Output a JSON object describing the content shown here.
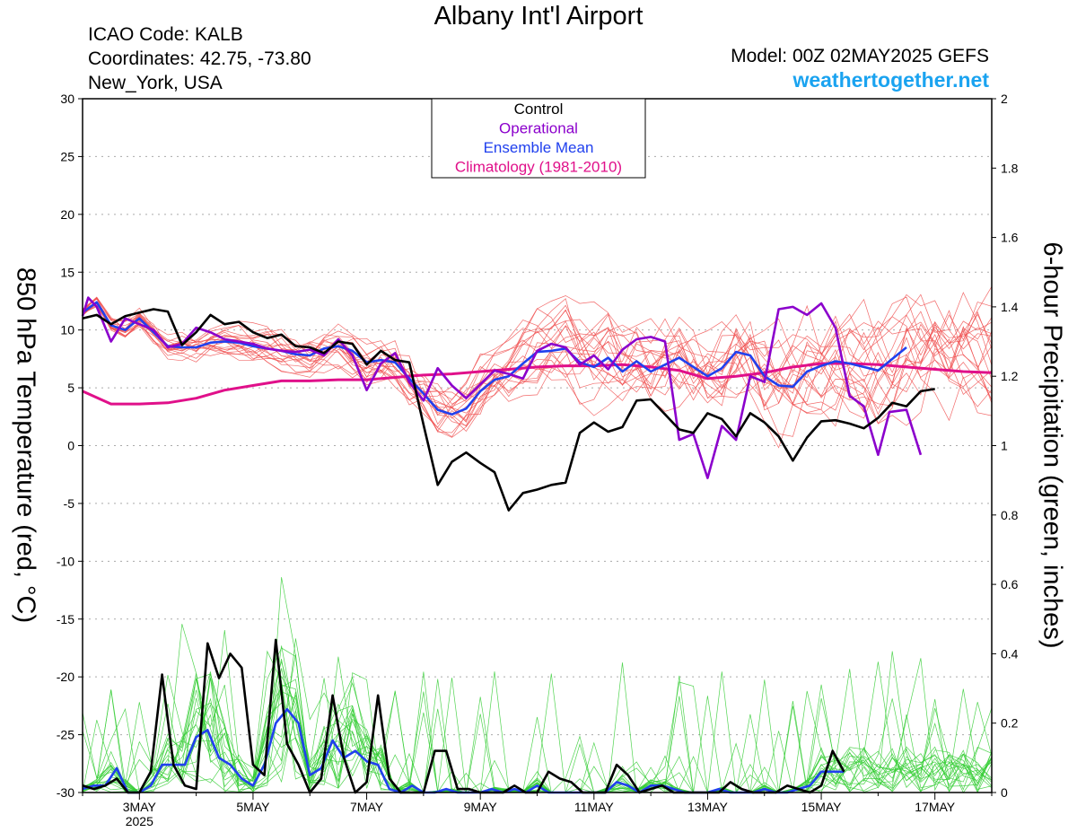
{
  "header": {
    "title": "Albany Int'l Airport",
    "icao": "ICAO Code: KALB",
    "coordinates": "Coordinates: 42.75, -73.80",
    "location": "New_York, USA",
    "model": "Model: 00Z 02MAY2025 GEFS",
    "site": "weathertogether.net"
  },
  "chart_data": {
    "type": "line",
    "ylabel": "850 hPa Temperature (red, °C)",
    "y2label": "6-hour Precipitation (green, inches)",
    "x_start_day": 2.0,
    "x_end_day": 18.0,
    "ylim": [
      -30,
      30
    ],
    "y2lim": [
      0,
      2
    ],
    "yticks": [
      "30",
      "25",
      "20",
      "15",
      "10",
      "5",
      "0",
      "-5",
      "-10",
      "-15",
      "-20",
      "-25",
      "-30"
    ],
    "y2ticks": [
      "2",
      "1.8",
      "1.6",
      "1.4",
      "1.2",
      "1",
      "0.8",
      "0.6",
      "0.4",
      "0.2",
      "0"
    ],
    "xticks": [
      {
        "label": "3MAY",
        "day": 3
      },
      {
        "label": "5MAY",
        "day": 5
      },
      {
        "label": "7MAY",
        "day": 7
      },
      {
        "label": "9MAY",
        "day": 9
      },
      {
        "label": "11MAY",
        "day": 11
      },
      {
        "label": "13MAY",
        "day": 13
      },
      {
        "label": "15MAY",
        "day": 15
      },
      {
        "label": "17MAY",
        "day": 17
      }
    ],
    "xyear": "2025",
    "legend": {
      "placement": "top-center",
      "entries": [
        {
          "name": "Control",
          "color": "#000000"
        },
        {
          "name": "Operational",
          "color": "#8b00cc"
        },
        {
          "name": "Ensemble Mean",
          "color": "#2040ee"
        },
        {
          "name": "Climatology (1981-2010)",
          "color": "#e0108a"
        }
      ]
    },
    "colors": {
      "control": "#000000",
      "operational": "#8b00cc",
      "ensemble_mean": "#2040ee",
      "climatology": "#e0108a",
      "members_temp": "#f05050",
      "members_precip": "#33cc33"
    },
    "temperature": {
      "climatology": [
        [
          2.0,
          4.7
        ],
        [
          2.5,
          3.6
        ],
        [
          3.0,
          3.6
        ],
        [
          3.5,
          3.7
        ],
        [
          4.0,
          4.1
        ],
        [
          4.5,
          4.8
        ],
        [
          5.0,
          5.2
        ],
        [
          5.5,
          5.6
        ],
        [
          6.0,
          5.6
        ],
        [
          6.5,
          5.7
        ],
        [
          7.0,
          5.7
        ],
        [
          7.5,
          5.9
        ],
        [
          8.0,
          6.1
        ],
        [
          8.5,
          6.2
        ],
        [
          9.0,
          6.4
        ],
        [
          9.5,
          6.6
        ],
        [
          10.0,
          6.8
        ],
        [
          10.5,
          6.9
        ],
        [
          11.0,
          6.9
        ],
        [
          11.5,
          7.0
        ],
        [
          12.0,
          6.8
        ],
        [
          12.5,
          6.5
        ],
        [
          13.0,
          5.8
        ],
        [
          13.5,
          6.0
        ],
        [
          14.0,
          6.3
        ],
        [
          14.5,
          6.8
        ],
        [
          15.0,
          7.1
        ],
        [
          15.5,
          7.1
        ],
        [
          16.0,
          7.0
        ],
        [
          16.5,
          6.8
        ],
        [
          17.0,
          6.6
        ],
        [
          17.5,
          6.4
        ],
        [
          18.0,
          6.3
        ]
      ],
      "control": [
        [
          2.0,
          11.0
        ],
        [
          2.25,
          11.3
        ],
        [
          2.5,
          10.5
        ],
        [
          2.75,
          11.2
        ],
        [
          3.0,
          11.5
        ],
        [
          3.25,
          11.8
        ],
        [
          3.5,
          11.6
        ],
        [
          3.75,
          8.7
        ],
        [
          4.0,
          9.8
        ],
        [
          4.25,
          11.3
        ],
        [
          4.5,
          10.5
        ],
        [
          4.75,
          10.7
        ],
        [
          5.0,
          9.8
        ],
        [
          5.25,
          9.3
        ],
        [
          5.5,
          9.6
        ],
        [
          5.75,
          8.6
        ],
        [
          6.0,
          8.5
        ],
        [
          6.25,
          8.0
        ],
        [
          6.5,
          9.0
        ],
        [
          6.75,
          8.8
        ],
        [
          7.0,
          7.0
        ],
        [
          7.25,
          8.2
        ],
        [
          7.5,
          7.4
        ],
        [
          7.75,
          7.2
        ],
        [
          8.0,
          1.8
        ],
        [
          8.25,
          -3.4
        ],
        [
          8.5,
          -1.4
        ],
        [
          8.75,
          -0.6
        ],
        [
          9.0,
          -1.5
        ],
        [
          9.25,
          -2.3
        ],
        [
          9.5,
          -5.6
        ],
        [
          9.75,
          -4.1
        ],
        [
          10.0,
          -3.8
        ],
        [
          10.25,
          -3.4
        ],
        [
          10.5,
          -3.2
        ],
        [
          10.75,
          1.1
        ],
        [
          11.0,
          2.0
        ],
        [
          11.25,
          1.2
        ],
        [
          11.5,
          1.6
        ],
        [
          11.75,
          3.9
        ],
        [
          12.0,
          4.0
        ],
        [
          12.25,
          2.7
        ],
        [
          12.5,
          1.4
        ],
        [
          12.75,
          1.1
        ],
        [
          13.0,
          2.8
        ],
        [
          13.25,
          2.3
        ],
        [
          13.5,
          0.8
        ],
        [
          13.75,
          2.8
        ],
        [
          14.0,
          2.0
        ],
        [
          14.25,
          0.8
        ],
        [
          14.5,
          -1.3
        ],
        [
          14.75,
          0.7
        ],
        [
          15.0,
          2.1
        ],
        [
          15.25,
          2.2
        ],
        [
          15.5,
          1.9
        ],
        [
          15.75,
          1.5
        ],
        [
          16.0,
          2.4
        ],
        [
          16.25,
          3.7
        ],
        [
          16.5,
          3.4
        ],
        [
          16.75,
          4.7
        ],
        [
          17.0,
          4.9
        ]
      ],
      "operational": [
        [
          2.0,
          11.2
        ],
        [
          2.1,
          12.8
        ],
        [
          2.25,
          12.0
        ],
        [
          2.5,
          9.0
        ],
        [
          2.75,
          11.0
        ],
        [
          3.0,
          10.5
        ],
        [
          3.25,
          10.0
        ],
        [
          3.5,
          8.5
        ],
        [
          3.75,
          8.8
        ],
        [
          4.0,
          10.2
        ],
        [
          4.25,
          9.8
        ],
        [
          4.5,
          9.2
        ],
        [
          4.75,
          9.0
        ],
        [
          5.0,
          8.8
        ],
        [
          5.25,
          8.4
        ],
        [
          5.5,
          8.2
        ],
        [
          5.75,
          8.1
        ],
        [
          6.0,
          8.3
        ],
        [
          6.25,
          7.8
        ],
        [
          6.5,
          9.2
        ],
        [
          6.75,
          7.8
        ],
        [
          7.0,
          4.8
        ],
        [
          7.25,
          7.1
        ],
        [
          7.5,
          8.0
        ],
        [
          7.75,
          5.5
        ],
        [
          8.0,
          3.9
        ],
        [
          8.25,
          6.7
        ],
        [
          8.5,
          5.2
        ],
        [
          8.75,
          4.1
        ],
        [
          9.0,
          5.3
        ],
        [
          9.25,
          6.5
        ],
        [
          9.5,
          6.2
        ],
        [
          9.75,
          5.8
        ],
        [
          10.0,
          8.2
        ],
        [
          10.25,
          8.8
        ],
        [
          10.5,
          8.5
        ],
        [
          10.75,
          7.0
        ],
        [
          11.0,
          7.8
        ],
        [
          11.25,
          6.6
        ],
        [
          11.5,
          8.3
        ],
        [
          11.75,
          9.2
        ],
        [
          12.0,
          9.4
        ],
        [
          12.25,
          9.0
        ],
        [
          12.5,
          0.5
        ],
        [
          12.75,
          1.0
        ],
        [
          13.0,
          -2.8
        ],
        [
          13.25,
          1.7
        ],
        [
          13.5,
          0.5
        ],
        [
          13.75,
          6.0
        ],
        [
          14.0,
          5.5
        ],
        [
          14.25,
          11.8
        ],
        [
          14.5,
          12.0
        ],
        [
          14.75,
          11.3
        ],
        [
          15.0,
          12.3
        ],
        [
          15.25,
          10.2
        ],
        [
          15.5,
          4.3
        ],
        [
          15.75,
          3.4
        ],
        [
          16.0,
          -0.8
        ],
        [
          16.2,
          2.9
        ],
        [
          16.5,
          3.1
        ],
        [
          16.75,
          -0.8
        ]
      ],
      "ensemble_mean": [
        [
          2.0,
          11.5
        ],
        [
          2.25,
          12.4
        ],
        [
          2.5,
          10.4
        ],
        [
          2.75,
          10.0
        ],
        [
          3.0,
          11.0
        ],
        [
          3.25,
          9.8
        ],
        [
          3.5,
          8.6
        ],
        [
          3.75,
          8.5
        ],
        [
          4.0,
          8.5
        ],
        [
          4.25,
          8.9
        ],
        [
          4.5,
          9.0
        ],
        [
          4.75,
          8.9
        ],
        [
          5.0,
          8.6
        ],
        [
          5.25,
          8.4
        ],
        [
          5.5,
          8.2
        ],
        [
          5.75,
          7.9
        ],
        [
          6.0,
          7.8
        ],
        [
          6.25,
          8.4
        ],
        [
          6.5,
          8.6
        ],
        [
          6.75,
          8.2
        ],
        [
          7.0,
          7.2
        ],
        [
          7.25,
          7.4
        ],
        [
          7.5,
          7.2
        ],
        [
          7.75,
          5.8
        ],
        [
          8.0,
          4.5
        ],
        [
          8.25,
          3.1
        ],
        [
          8.5,
          2.7
        ],
        [
          8.75,
          3.2
        ],
        [
          9.0,
          4.7
        ],
        [
          9.25,
          5.7
        ],
        [
          9.5,
          6.0
        ],
        [
          9.75,
          7.1
        ],
        [
          10.0,
          8.1
        ],
        [
          10.25,
          8.2
        ],
        [
          10.5,
          8.4
        ],
        [
          10.75,
          7.2
        ],
        [
          11.0,
          6.8
        ],
        [
          11.25,
          7.6
        ],
        [
          11.5,
          6.4
        ],
        [
          11.75,
          7.3
        ],
        [
          12.0,
          6.4
        ],
        [
          12.25,
          7.0
        ],
        [
          12.5,
          7.6
        ],
        [
          12.75,
          6.8
        ],
        [
          13.0,
          6.0
        ],
        [
          13.25,
          6.7
        ],
        [
          13.5,
          8.1
        ],
        [
          13.75,
          7.8
        ],
        [
          14.0,
          6.0
        ],
        [
          14.25,
          5.2
        ],
        [
          14.5,
          5.1
        ],
        [
          14.75,
          6.4
        ],
        [
          15.0,
          6.9
        ],
        [
          15.25,
          7.3
        ],
        [
          15.5,
          7.1
        ],
        [
          15.75,
          6.8
        ],
        [
          16.0,
          6.5
        ],
        [
          16.25,
          7.5
        ],
        [
          16.5,
          8.5
        ]
      ]
    },
    "precipitation": {
      "control": [
        [
          2.0,
          0.02
        ],
        [
          2.2,
          0.01
        ],
        [
          2.4,
          0.02
        ],
        [
          2.6,
          0.04
        ],
        [
          2.8,
          0.0
        ],
        [
          3.0,
          0.0
        ],
        [
          3.2,
          0.06
        ],
        [
          3.4,
          0.34
        ],
        [
          3.6,
          0.08
        ],
        [
          3.8,
          0.02
        ],
        [
          4.0,
          0.01
        ],
        [
          4.2,
          0.43
        ],
        [
          4.4,
          0.33
        ],
        [
          4.6,
          0.4
        ],
        [
          4.8,
          0.36
        ],
        [
          5.0,
          0.08
        ],
        [
          5.2,
          0.05
        ],
        [
          5.4,
          0.44
        ],
        [
          5.6,
          0.14
        ],
        [
          5.8,
          0.08
        ],
        [
          6.0,
          0.0
        ],
        [
          6.2,
          0.04
        ],
        [
          6.4,
          0.28
        ],
        [
          6.6,
          0.1
        ],
        [
          6.8,
          0.0
        ],
        [
          7.0,
          0.03
        ],
        [
          7.2,
          0.28
        ],
        [
          7.4,
          0.04
        ],
        [
          7.6,
          0.0
        ],
        [
          8.0,
          0.0
        ],
        [
          8.2,
          0.12
        ],
        [
          8.4,
          0.12
        ],
        [
          8.6,
          0.01
        ],
        [
          8.8,
          0.01
        ],
        [
          9.0,
          0.0
        ],
        [
          9.2,
          0.0
        ],
        [
          9.4,
          0.0
        ],
        [
          9.6,
          0.02
        ],
        [
          9.8,
          0.0
        ],
        [
          10.0,
          0.0
        ],
        [
          10.2,
          0.06
        ],
        [
          10.4,
          0.04
        ],
        [
          10.6,
          0.03
        ],
        [
          10.8,
          0.0
        ],
        [
          11.0,
          0.0
        ],
        [
          11.2,
          0.0
        ],
        [
          11.4,
          0.08
        ],
        [
          11.6,
          0.05
        ],
        [
          11.8,
          0.0
        ],
        [
          12.0,
          0.01
        ],
        [
          12.2,
          0.02
        ],
        [
          12.4,
          0.0
        ],
        [
          12.6,
          0.0
        ],
        [
          13.0,
          0.0
        ],
        [
          13.2,
          0.0
        ],
        [
          13.4,
          0.03
        ],
        [
          13.6,
          0.01
        ],
        [
          13.8,
          0.0
        ],
        [
          14.2,
          0.0
        ],
        [
          14.4,
          0.02
        ],
        [
          14.6,
          0.01
        ],
        [
          14.8,
          0.0
        ],
        [
          15.0,
          0.02
        ],
        [
          15.2,
          0.12
        ],
        [
          15.4,
          0.06
        ]
      ],
      "ensemble_mean": [
        [
          2.0,
          0.01
        ],
        [
          2.2,
          0.02
        ],
        [
          2.4,
          0.02
        ],
        [
          2.6,
          0.07
        ],
        [
          2.8,
          0.0
        ],
        [
          3.0,
          0.0
        ],
        [
          3.2,
          0.02
        ],
        [
          3.4,
          0.08
        ],
        [
          3.6,
          0.08
        ],
        [
          3.8,
          0.08
        ],
        [
          4.0,
          0.16
        ],
        [
          4.2,
          0.18
        ],
        [
          4.4,
          0.1
        ],
        [
          4.6,
          0.08
        ],
        [
          4.8,
          0.04
        ],
        [
          5.0,
          0.02
        ],
        [
          5.2,
          0.08
        ],
        [
          5.4,
          0.2
        ],
        [
          5.6,
          0.24
        ],
        [
          5.8,
          0.2
        ],
        [
          6.0,
          0.05
        ],
        [
          6.2,
          0.07
        ],
        [
          6.4,
          0.15
        ],
        [
          6.6,
          0.1
        ],
        [
          6.8,
          0.12
        ],
        [
          7.0,
          0.09
        ],
        [
          7.2,
          0.08
        ],
        [
          7.4,
          0.01
        ],
        [
          7.6,
          0.0
        ],
        [
          7.8,
          0.02
        ],
        [
          8.0,
          0.0
        ],
        [
          8.2,
          0.0
        ],
        [
          8.4,
          0.01
        ],
        [
          8.6,
          0.0
        ],
        [
          8.8,
          0.0
        ],
        [
          9.0,
          0.0
        ],
        [
          9.2,
          0.01
        ],
        [
          9.4,
          0.0
        ],
        [
          9.6,
          0.01
        ],
        [
          9.8,
          0.0
        ],
        [
          10.0,
          0.02
        ],
        [
          10.2,
          0.0
        ],
        [
          10.4,
          0.0
        ],
        [
          10.6,
          0.0
        ],
        [
          11.0,
          0.0
        ],
        [
          11.2,
          0.0
        ],
        [
          11.4,
          0.03
        ],
        [
          11.6,
          0.02
        ],
        [
          11.8,
          0.0
        ],
        [
          12.0,
          0.02
        ],
        [
          12.2,
          0.02
        ],
        [
          12.4,
          0.01
        ],
        [
          12.6,
          0.0
        ],
        [
          12.8,
          0.0
        ],
        [
          13.0,
          0.0
        ],
        [
          13.2,
          0.01
        ],
        [
          13.4,
          0.0
        ],
        [
          13.6,
          0.0
        ],
        [
          13.8,
          0.0
        ],
        [
          14.0,
          0.01
        ],
        [
          14.2,
          0.0
        ],
        [
          14.4,
          0.0
        ],
        [
          14.6,
          0.01
        ],
        [
          14.8,
          0.02
        ],
        [
          15.0,
          0.06
        ],
        [
          15.2,
          0.06
        ],
        [
          15.4,
          0.06
        ]
      ]
    }
  }
}
